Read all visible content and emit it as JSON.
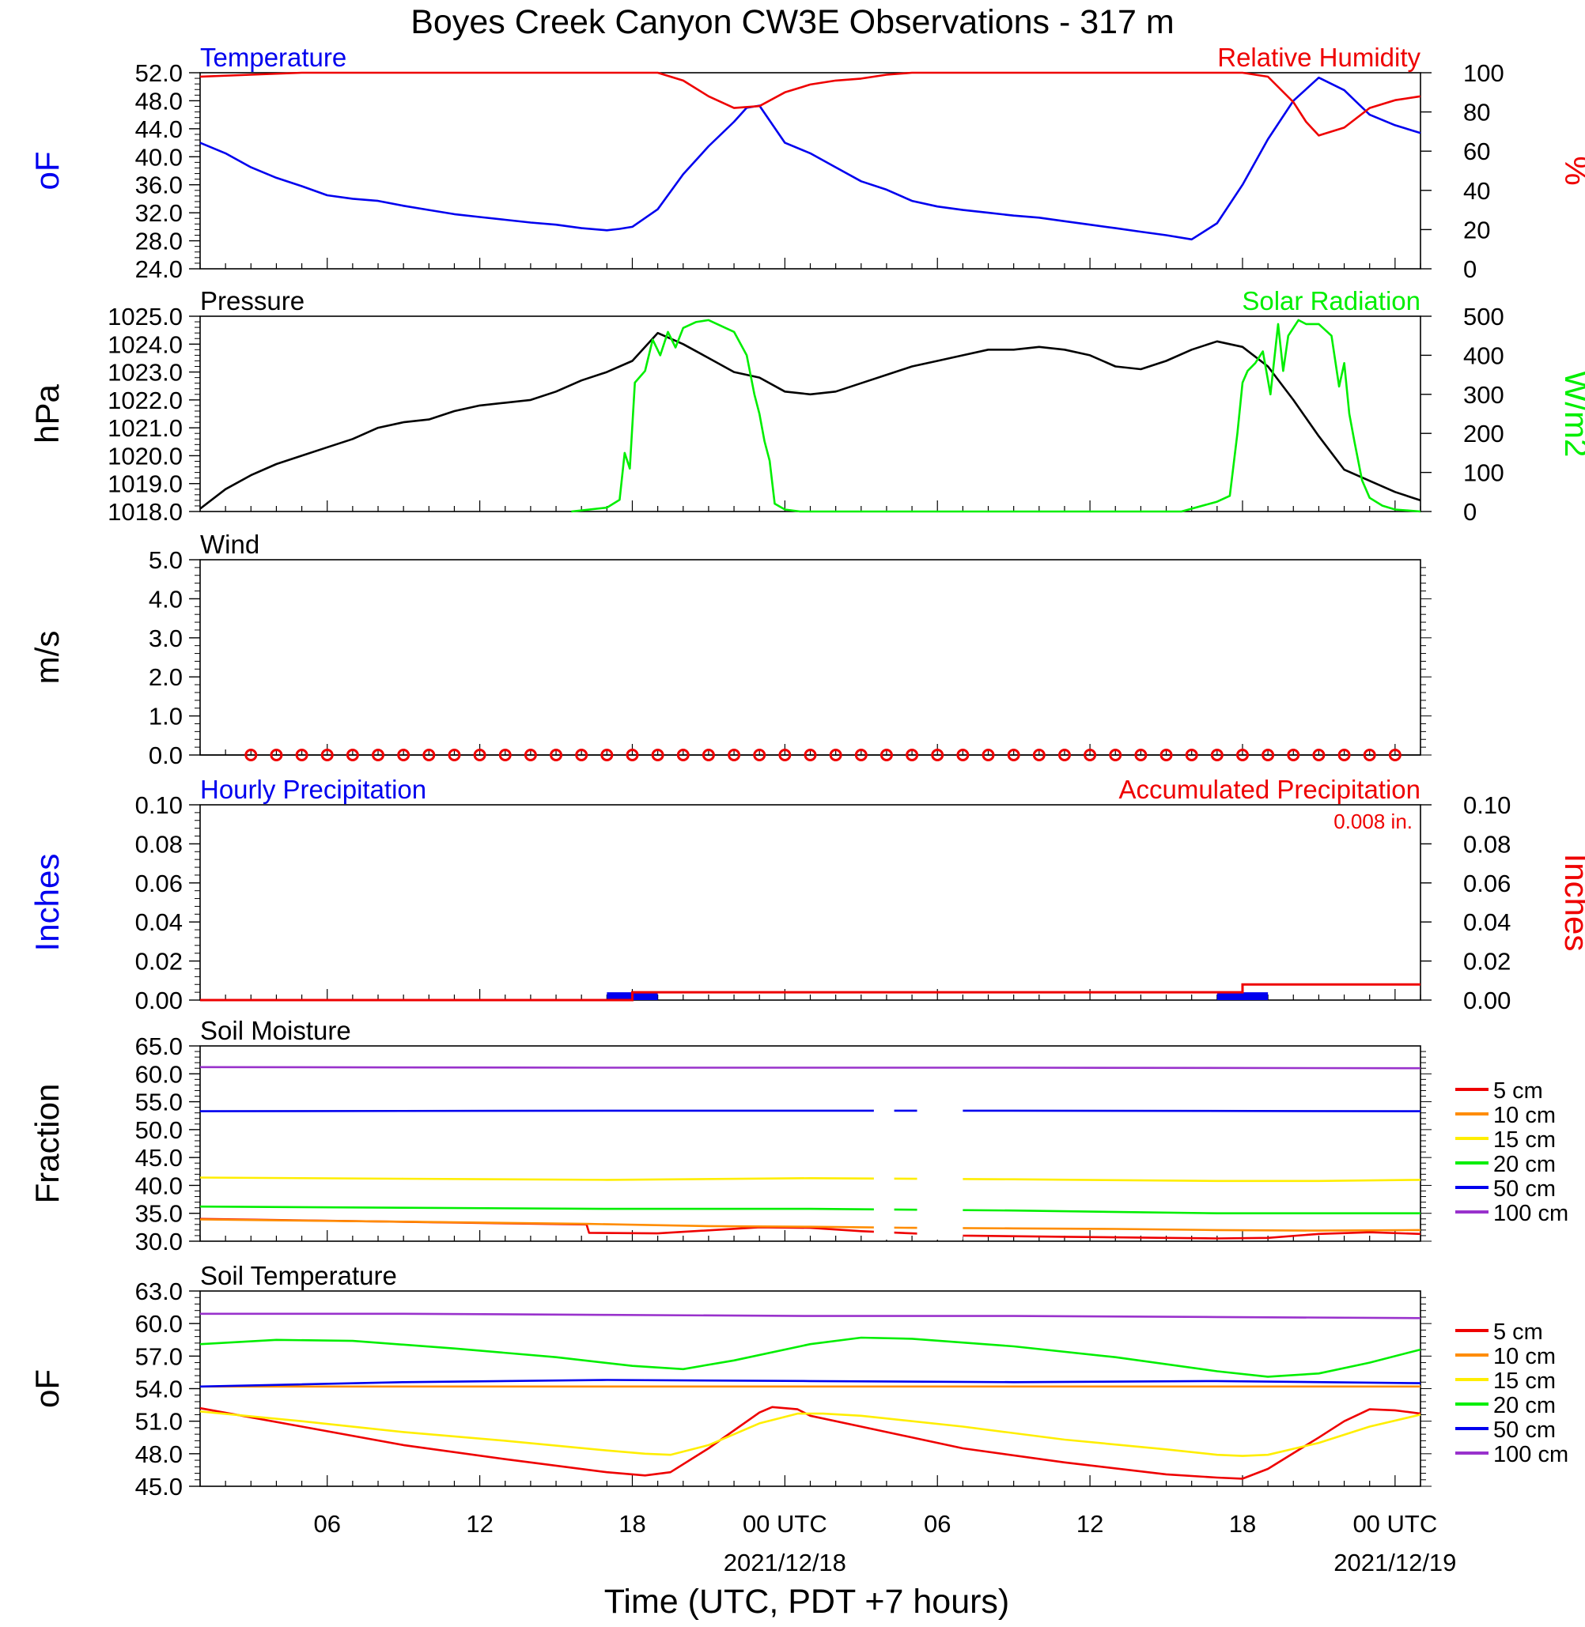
{
  "title": "Boyes Creek Canyon CW3E Observations - 317 m",
  "x_axis": {
    "label": "Time (UTC, PDT +7 hours)",
    "range_hours": [
      0,
      48
    ],
    "tick_labels": [
      {
        "hour": 5,
        "label": "06"
      },
      {
        "hour": 11,
        "label": "12"
      },
      {
        "hour": 17,
        "label": "18"
      },
      {
        "hour": 23,
        "label": "00 UTC"
      },
      {
        "hour": 29,
        "label": "06"
      },
      {
        "hour": 35,
        "label": "12"
      },
      {
        "hour": 41,
        "label": "18"
      },
      {
        "hour": 47,
        "label": "00 UTC"
      }
    ],
    "date_labels": [
      {
        "hour": 23,
        "label": "2021/12/18"
      },
      {
        "hour": 47,
        "label": "2021/12/19"
      }
    ]
  },
  "chart_data": [
    {
      "type": "line",
      "panel": "temperature-humidity",
      "left_title": "Temperature",
      "right_title": "Relative Humidity",
      "ylabel_left": "oF",
      "ylabel_right": "%",
      "ylim_left": [
        24,
        52
      ],
      "yticks_left": [
        "24.0",
        "28.0",
        "32.0",
        "36.0",
        "40.0",
        "44.0",
        "48.0",
        "52.0"
      ],
      "ylim_right": [
        0,
        100
      ],
      "yticks_right": [
        "0",
        "20",
        "40",
        "60",
        "80",
        "100"
      ],
      "series": [
        {
          "name": "Temperature",
          "axis": "left",
          "color": "#0000ee",
          "x": [
            0,
            1,
            2,
            3,
            4,
            5,
            6,
            7,
            8,
            9,
            10,
            11,
            12,
            13,
            14,
            15,
            16,
            16.5,
            17,
            18,
            19,
            20,
            21,
            21.5,
            22,
            23,
            24,
            25,
            26,
            27,
            28,
            29,
            30,
            31,
            32,
            33,
            34,
            35,
            36,
            37,
            38,
            39,
            40,
            41,
            42,
            43,
            44,
            45,
            46,
            47,
            48
          ],
          "y": [
            42.0,
            40.5,
            38.5,
            37.0,
            35.8,
            34.5,
            34.0,
            33.7,
            33.0,
            32.4,
            31.8,
            31.4,
            31.0,
            30.6,
            30.3,
            29.8,
            29.5,
            29.7,
            30.0,
            32.5,
            37.5,
            41.5,
            45.0,
            47.0,
            47.3,
            42.0,
            40.5,
            38.5,
            36.5,
            35.3,
            33.7,
            32.9,
            32.4,
            32.0,
            31.6,
            31.3,
            30.8,
            30.3,
            29.8,
            29.3,
            28.8,
            28.2,
            30.5,
            36.0,
            42.5,
            48.0,
            51.3,
            49.5,
            46.0,
            44.5,
            43.4
          ]
        },
        {
          "name": "Relative Humidity",
          "axis": "right",
          "color": "#ee0000",
          "x": [
            0,
            2,
            4,
            6,
            8,
            10,
            12,
            14,
            16,
            18,
            19,
            20,
            21,
            22,
            23,
            24,
            25,
            26,
            27,
            28,
            30,
            32,
            34,
            36,
            38,
            40,
            41,
            42,
            43,
            43.5,
            44,
            45,
            46,
            47,
            48
          ],
          "y": [
            98,
            99,
            100,
            100,
            100,
            100,
            100,
            100,
            100,
            100,
            96,
            88,
            82,
            83,
            90,
            94,
            96,
            97,
            99,
            100,
            100,
            100,
            100,
            100,
            100,
            100,
            100,
            98,
            85,
            75,
            68,
            72,
            82,
            86,
            88
          ]
        }
      ]
    },
    {
      "type": "line",
      "panel": "pressure-solar",
      "left_title": "Pressure",
      "right_title": "Solar Radiation",
      "ylabel_left": "hPa",
      "ylabel_right": "W/m2",
      "ylim_left": [
        1018,
        1025
      ],
      "yticks_left": [
        "1018.0",
        "1019.0",
        "1020.0",
        "1021.0",
        "1022.0",
        "1023.0",
        "1024.0",
        "1025.0"
      ],
      "ylim_right": [
        0,
        500
      ],
      "yticks_right": [
        "0",
        "100",
        "200",
        "300",
        "400",
        "500"
      ],
      "series": [
        {
          "name": "Pressure",
          "axis": "left",
          "color": "#000000",
          "x": [
            0,
            1,
            2,
            3,
            4,
            5,
            6,
            7,
            8,
            9,
            10,
            11,
            12,
            13,
            14,
            15,
            16,
            17,
            18,
            19,
            20,
            21,
            22,
            23,
            24,
            25,
            26,
            27,
            28,
            29,
            30,
            31,
            32,
            33,
            34,
            35,
            36,
            37,
            38,
            39,
            40,
            41,
            42,
            43,
            44,
            45,
            46,
            47,
            48
          ],
          "y": [
            1018.1,
            1018.8,
            1019.3,
            1019.7,
            1020.0,
            1020.3,
            1020.6,
            1021.0,
            1021.2,
            1021.3,
            1021.6,
            1021.8,
            1021.9,
            1022.0,
            1022.3,
            1022.7,
            1023.0,
            1023.4,
            1024.4,
            1024.0,
            1023.5,
            1023.0,
            1022.8,
            1022.3,
            1022.2,
            1022.3,
            1022.6,
            1022.9,
            1023.2,
            1023.4,
            1023.6,
            1023.8,
            1023.8,
            1023.9,
            1023.8,
            1023.6,
            1023.2,
            1023.1,
            1023.4,
            1023.8,
            1024.1,
            1023.9,
            1023.2,
            1022.0,
            1020.7,
            1019.5,
            1019.1,
            1018.7,
            1018.4
          ]
        },
        {
          "name": "Solar Radiation",
          "axis": "right",
          "color": "#00ee00",
          "x": [
            14.6,
            16,
            16.5,
            16.7,
            16.9,
            17.1,
            17.5,
            17.8,
            18.1,
            18.4,
            18.7,
            19.0,
            19.5,
            20,
            21,
            21.5,
            21.8,
            22.0,
            22.2,
            22.4,
            22.6,
            23,
            23.6,
            38.6,
            40,
            40.5,
            40.8,
            41.0,
            41.2,
            41.5,
            41.8,
            42.1,
            42.4,
            42.6,
            42.8,
            43.2,
            43.5,
            44,
            44.5,
            44.8,
            45.0,
            45.2,
            45.4,
            45.7,
            46,
            46.5,
            47,
            48
          ],
          "y": [
            0,
            10,
            30,
            150,
            110,
            330,
            360,
            440,
            400,
            460,
            420,
            470,
            485,
            490,
            460,
            400,
            300,
            250,
            180,
            130,
            20,
            5,
            0,
            0,
            25,
            40,
            200,
            330,
            360,
            380,
            410,
            300,
            480,
            360,
            450,
            490,
            480,
            480,
            450,
            320,
            380,
            250,
            180,
            80,
            35,
            15,
            5,
            0
          ]
        }
      ]
    },
    {
      "type": "scatter",
      "panel": "wind",
      "left_title": "Wind",
      "ylabel_left": "m/s",
      "ylim_left": [
        0,
        5
      ],
      "yticks_left": [
        "0.0",
        "1.0",
        "2.0",
        "3.0",
        "4.0",
        "5.0"
      ],
      "series": [
        {
          "name": "Wind",
          "color": "#ee0000",
          "marker": "open-circle",
          "x": [
            2,
            3,
            4,
            5,
            6,
            7,
            8,
            9,
            10,
            11,
            12,
            13,
            14,
            15,
            16,
            17,
            18,
            19,
            20,
            21,
            22,
            23,
            24,
            25,
            26,
            27,
            28,
            29,
            30,
            31,
            32,
            33,
            34,
            35,
            36,
            37,
            38,
            39,
            40,
            41,
            42,
            43,
            44,
            45,
            46,
            47
          ],
          "y": [
            0,
            0,
            0,
            0,
            0,
            0,
            0,
            0,
            0,
            0,
            0,
            0,
            0,
            0,
            0,
            0,
            0,
            0,
            0,
            0,
            0,
            0,
            0,
            0,
            0,
            0,
            0,
            0,
            0,
            0,
            0,
            0,
            0,
            0,
            0,
            0,
            0,
            0,
            0,
            0,
            0,
            0,
            0,
            0,
            0,
            0
          ]
        }
      ]
    },
    {
      "type": "bar",
      "panel": "precipitation",
      "left_title": "Hourly Precipitation",
      "right_title": "Accumulated Precipitation",
      "accum_label": "0.008 in.",
      "ylabel_left": "Inches",
      "ylabel_right": "Inches",
      "ylim_left": [
        0,
        0.1
      ],
      "yticks_left": [
        "0.00",
        "0.02",
        "0.04",
        "0.06",
        "0.08",
        "0.10"
      ],
      "ylim_right": [
        0,
        0.1
      ],
      "yticks_right": [
        "0.00",
        "0.02",
        "0.04",
        "0.06",
        "0.08",
        "0.10"
      ],
      "series": [
        {
          "name": "Hourly Precipitation",
          "type": "bar",
          "color": "#0000ee",
          "x": [
            16.5,
            17.5,
            40.5,
            41.5
          ],
          "y": [
            0.004,
            0.004,
            0.004,
            0.004
          ]
        },
        {
          "name": "Accumulated Precipitation",
          "type": "step",
          "color": "#ee0000",
          "x": [
            0,
            16.5,
            17.0,
            41.0,
            48
          ],
          "y": [
            0.0,
            0.0,
            0.004,
            0.008,
            0.008
          ]
        }
      ]
    },
    {
      "type": "line",
      "panel": "soil-moisture",
      "left_title": "Soil Moisture",
      "ylabel_left": "Fraction",
      "ylim_left": [
        30,
        65
      ],
      "yticks_left": [
        "30.0",
        "35.0",
        "40.0",
        "45.0",
        "50.0",
        "55.0",
        "60.0",
        "65.0"
      ],
      "gaps": [
        [
          26.5,
          27.3
        ],
        [
          28.2,
          30.0
        ]
      ],
      "series": [
        {
          "name": "5 cm",
          "color": "#ee0000",
          "x": [
            0,
            15.2,
            15.3,
            18,
            22,
            24,
            26,
            28,
            30,
            34,
            38,
            40,
            42,
            44,
            46,
            48
          ],
          "y": [
            34.0,
            33.0,
            31.5,
            31.4,
            32.5,
            32.4,
            31.8,
            31.4,
            31.0,
            30.8,
            30.6,
            30.5,
            30.6,
            31.3,
            31.6,
            31.3
          ]
        },
        {
          "name": "10 cm",
          "color": "#ff8c00",
          "x": [
            0,
            8,
            15.2,
            20,
            24,
            28,
            32,
            36,
            40,
            44,
            48
          ],
          "y": [
            33.9,
            33.5,
            33.1,
            32.7,
            32.6,
            32.4,
            32.3,
            32.2,
            32.0,
            31.9,
            32.0
          ]
        },
        {
          "name": "15 cm",
          "color": "#ffee00",
          "x": [
            0,
            8,
            16,
            24,
            32,
            40,
            44,
            48
          ],
          "y": [
            41.4,
            41.2,
            41.0,
            41.3,
            41.1,
            40.8,
            40.8,
            41.0
          ]
        },
        {
          "name": "20 cm",
          "color": "#00ee00",
          "x": [
            0,
            8,
            16,
            24,
            32,
            40,
            48
          ],
          "y": [
            36.2,
            36.0,
            35.8,
            35.8,
            35.5,
            35.0,
            35.0
          ]
        },
        {
          "name": "50 cm",
          "color": "#0000ee",
          "x": [
            0,
            16,
            32,
            48
          ],
          "y": [
            53.3,
            53.4,
            53.4,
            53.3
          ]
        },
        {
          "name": "100 cm",
          "color": "#9932cc",
          "x": [
            0,
            16,
            32,
            48
          ],
          "y": [
            61.2,
            61.1,
            61.1,
            61.0
          ]
        }
      ]
    },
    {
      "type": "line",
      "panel": "soil-temperature",
      "left_title": "Soil Temperature",
      "ylabel_left": "oF",
      "ylim_left": [
        45,
        63
      ],
      "yticks_left": [
        "45.0",
        "48.0",
        "51.0",
        "54.0",
        "57.0",
        "60.0",
        "63.0"
      ],
      "series": [
        {
          "name": "5 cm",
          "color": "#ee0000",
          "x": [
            0,
            4,
            8,
            12,
            16,
            17.5,
            18.5,
            20,
            22,
            22.5,
            23.5,
            24,
            26,
            30,
            34,
            38,
            40,
            41,
            42,
            44,
            45,
            46,
            47,
            48
          ],
          "y": [
            52.2,
            50.5,
            48.8,
            47.5,
            46.3,
            46.0,
            46.3,
            48.5,
            51.8,
            52.3,
            52.1,
            51.5,
            50.5,
            48.5,
            47.2,
            46.1,
            45.8,
            45.7,
            46.6,
            49.5,
            51.0,
            52.1,
            52.0,
            51.7
          ]
        },
        {
          "name": "10 cm",
          "color": "#ff8c00",
          "x": [
            0,
            48
          ],
          "y": [
            54.2,
            54.2
          ]
        },
        {
          "name": "15 cm",
          "color": "#ffee00",
          "x": [
            0,
            4,
            8,
            12,
            16,
            17.5,
            18.5,
            20,
            22,
            23.5,
            24.5,
            26,
            30,
            34,
            38,
            40,
            41,
            42,
            44,
            46,
            48
          ],
          "y": [
            51.9,
            51.0,
            50.0,
            49.2,
            48.3,
            48.0,
            47.9,
            48.8,
            50.8,
            51.7,
            51.7,
            51.5,
            50.5,
            49.3,
            48.4,
            47.9,
            47.8,
            47.9,
            49.0,
            50.5,
            51.6
          ]
        },
        {
          "name": "20 cm",
          "color": "#00ee00",
          "x": [
            0,
            3,
            6,
            10,
            14,
            17,
            19,
            21,
            24,
            26,
            28,
            32,
            36,
            40,
            42,
            44,
            46,
            48
          ],
          "y": [
            58.1,
            58.5,
            58.4,
            57.7,
            56.9,
            56.1,
            55.8,
            56.6,
            58.1,
            58.7,
            58.6,
            57.9,
            56.9,
            55.6,
            55.1,
            55.4,
            56.4,
            57.6
          ]
        },
        {
          "name": "50 cm",
          "color": "#0000ee",
          "x": [
            0,
            8,
            16,
            24,
            32,
            40,
            48
          ],
          "y": [
            54.2,
            54.6,
            54.8,
            54.7,
            54.6,
            54.7,
            54.5
          ]
        },
        {
          "name": "100 cm",
          "color": "#9932cc",
          "x": [
            0,
            8,
            16,
            24,
            32,
            40,
            48
          ],
          "y": [
            60.9,
            60.9,
            60.8,
            60.7,
            60.7,
            60.6,
            60.5
          ]
        }
      ]
    }
  ]
}
